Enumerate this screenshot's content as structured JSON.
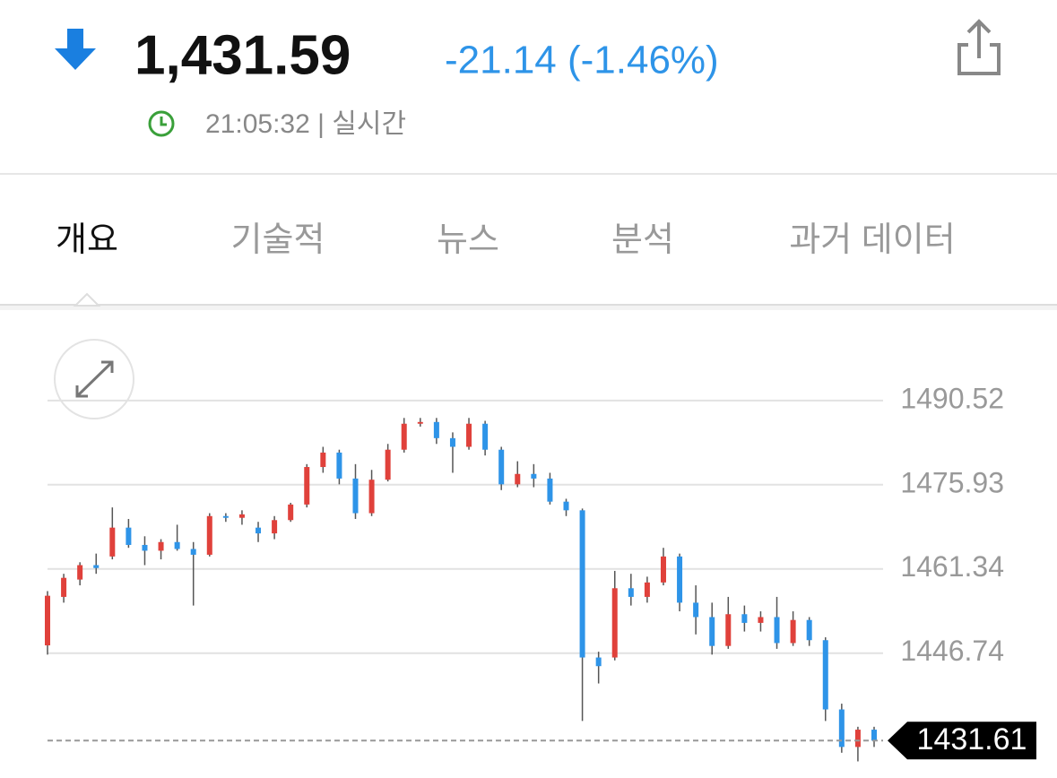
{
  "header": {
    "price": "1,431.59",
    "change": "-21.14 (-1.46%)",
    "time": "21:05:32 | 실시간"
  },
  "tabs": [
    "개요",
    "기술적",
    "뉴스",
    "분석",
    "과거 데이터"
  ],
  "chart_data": {
    "type": "candlestick",
    "ylim": [
      1425.9,
      1500.9
    ],
    "yticks": [
      1490.52,
      1475.93,
      1461.34,
      1446.74
    ],
    "grid": true,
    "up_color": "#e0413b",
    "down_color": "#2e94e8",
    "last_price": 1431.61,
    "ohlc": [
      [
        1448.1,
        1457.5,
        1446.5,
        1456.7
      ],
      [
        1456.5,
        1460.5,
        1455.5,
        1459.8
      ],
      [
        1459.5,
        1462.5,
        1458.5,
        1462.0
      ],
      [
        1462.0,
        1464.0,
        1460.5,
        1461.5
      ],
      [
        1463.5,
        1472.0,
        1463.0,
        1468.5
      ],
      [
        1468.5,
        1470.0,
        1465.0,
        1465.5
      ],
      [
        1465.5,
        1467.0,
        1462.0,
        1464.5
      ],
      [
        1464.5,
        1466.5,
        1463.0,
        1466.0
      ],
      [
        1466.0,
        1469.0,
        1464.5,
        1464.8
      ],
      [
        1464.8,
        1466.0,
        1455.0,
        1463.8
      ],
      [
        1463.8,
        1471.0,
        1463.5,
        1470.5
      ],
      [
        1470.5,
        1471.0,
        1469.5,
        1470.2
      ],
      [
        1470.2,
        1471.5,
        1469.0,
        1470.8
      ],
      [
        1468.5,
        1469.5,
        1466.0,
        1467.5
      ],
      [
        1467.5,
        1470.5,
        1466.5,
        1469.8
      ],
      [
        1469.8,
        1472.8,
        1469.5,
        1472.5
      ],
      [
        1472.5,
        1479.5,
        1472.0,
        1479.0
      ],
      [
        1479.0,
        1482.5,
        1478.0,
        1481.5
      ],
      [
        1481.5,
        1482.0,
        1476.0,
        1477.0
      ],
      [
        1477.0,
        1479.5,
        1470.0,
        1471.0
      ],
      [
        1471.0,
        1478.5,
        1470.5,
        1476.8
      ],
      [
        1476.8,
        1483.0,
        1476.5,
        1482.0
      ],
      [
        1482.0,
        1487.5,
        1481.5,
        1486.5
      ],
      [
        1486.5,
        1487.5,
        1486.0,
        1486.8
      ],
      [
        1486.8,
        1487.5,
        1483.0,
        1484.0
      ],
      [
        1484.0,
        1485.0,
        1478.0,
        1482.5
      ],
      [
        1482.5,
        1487.5,
        1482.0,
        1486.5
      ],
      [
        1486.5,
        1487.0,
        1481.0,
        1482.0
      ],
      [
        1482.0,
        1482.5,
        1475.0,
        1476.0
      ],
      [
        1476.0,
        1480.0,
        1475.5,
        1477.8
      ],
      [
        1477.8,
        1479.5,
        1475.5,
        1477.0
      ],
      [
        1477.0,
        1478.0,
        1472.5,
        1473.0
      ],
      [
        1473.0,
        1473.5,
        1470.5,
        1471.5
      ],
      [
        1471.5,
        1471.8,
        1435.0,
        1446.0
      ],
      [
        1446.0,
        1447.0,
        1441.5,
        1444.5
      ],
      [
        1446.0,
        1461.0,
        1445.5,
        1458.0
      ],
      [
        1458.0,
        1460.5,
        1455.0,
        1456.5
      ],
      [
        1456.5,
        1460.0,
        1455.5,
        1459.0
      ],
      [
        1459.0,
        1465.0,
        1458.5,
        1463.5
      ],
      [
        1463.5,
        1464.0,
        1454.0,
        1455.5
      ],
      [
        1455.5,
        1458.5,
        1450.0,
        1453.0
      ],
      [
        1453.0,
        1455.5,
        1446.5,
        1448.0
      ],
      [
        1448.0,
        1456.5,
        1447.5,
        1453.5
      ],
      [
        1453.5,
        1455.0,
        1450.5,
        1452.0
      ],
      [
        1452.0,
        1454.0,
        1450.5,
        1453.0
      ],
      [
        1453.0,
        1456.5,
        1447.5,
        1448.5
      ],
      [
        1448.5,
        1454.0,
        1448.0,
        1452.5
      ],
      [
        1452.5,
        1453.0,
        1448.0,
        1449.0
      ],
      [
        1449.0,
        1449.5,
        1435.0,
        1437.0
      ],
      [
        1437.0,
        1438.0,
        1429.5,
        1430.5
      ],
      [
        1430.5,
        1434.0,
        1428.0,
        1433.5
      ],
      [
        1433.5,
        1434.0,
        1430.5,
        1431.6
      ]
    ]
  }
}
